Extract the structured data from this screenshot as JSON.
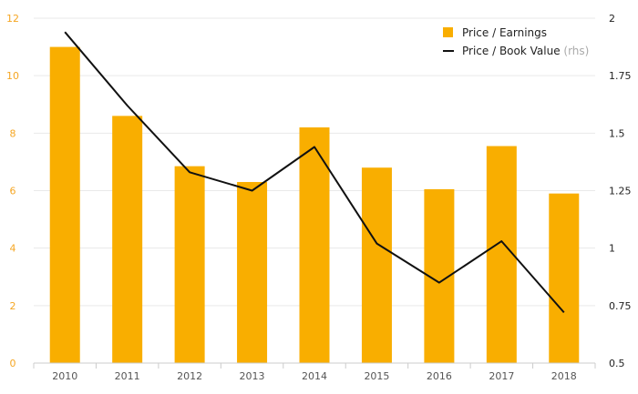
{
  "chart_data": {
    "type": "bar",
    "categories": [
      "2010",
      "2011",
      "2012",
      "2013",
      "2014",
      "2015",
      "2016",
      "2017",
      "2018"
    ],
    "series": [
      {
        "name": "Price / Earnings",
        "type": "bar",
        "axis": "left",
        "color": "#f9ae00",
        "values": [
          11.0,
          8.6,
          6.85,
          6.3,
          8.2,
          6.8,
          6.05,
          7.55,
          5.9
        ]
      },
      {
        "name": "Price / Book Value",
        "note": "(rhs)",
        "type": "line",
        "axis": "right",
        "color": "#111111",
        "values": [
          1.94,
          1.62,
          1.33,
          1.25,
          1.44,
          1.02,
          0.85,
          1.03,
          0.72
        ]
      }
    ],
    "y_left": {
      "ylim": [
        0,
        12
      ],
      "ticks": [
        "0",
        "2",
        "4",
        "6",
        "8",
        "10",
        "12"
      ]
    },
    "y_right": {
      "ylim": [
        0.5,
        2
      ],
      "ticks": [
        "0.5",
        "0.75",
        "1",
        "1.25",
        "1.5",
        "1.75",
        "2"
      ]
    },
    "grid": true,
    "legend": "top-right"
  }
}
